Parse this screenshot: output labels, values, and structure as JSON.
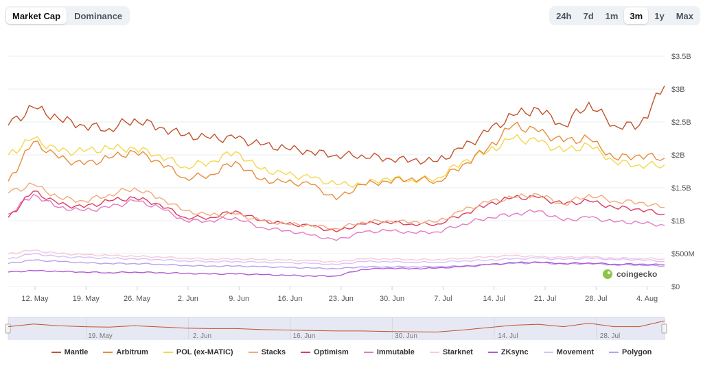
{
  "tabs": {
    "items": [
      "Market Cap",
      "Dominance"
    ],
    "active": "Market Cap"
  },
  "range": {
    "items": [
      "24h",
      "7d",
      "1m",
      "3m",
      "1y",
      "Max"
    ],
    "active": "3m"
  },
  "watermark": "coingecko",
  "chart_data": {
    "type": "line",
    "x_ticks": [
      "12. May",
      "19. May",
      "26. May",
      "2. Jun",
      "9. Jun",
      "16. Jun",
      "23. Jun",
      "30. Jun",
      "7. Jul",
      "14. Jul",
      "21. Jul",
      "28. Jul",
      "4. Aug"
    ],
    "navigator_ticks": [
      "19. May",
      "2. Jun",
      "16. Jun",
      "30. Jun",
      "14. Jul",
      "28. Jul"
    ],
    "y_ticks": [
      "$0",
      "$500M",
      "$1B",
      "$1.5B",
      "$2B",
      "$2.5B",
      "$3B",
      "$3.5B"
    ],
    "ylim": [
      0,
      3.5
    ],
    "y_unit": "$B",
    "grid": true,
    "legend_position": "bottom",
    "x": [
      "May 9",
      "May 12",
      "May 16",
      "May 19",
      "May 23",
      "May 26",
      "May 30",
      "Jun 2",
      "Jun 6",
      "Jun 9",
      "Jun 13",
      "Jun 16",
      "Jun 20",
      "Jun 23",
      "Jun 27",
      "Jun 30",
      "Jul 4",
      "Jul 7",
      "Jul 11",
      "Jul 14",
      "Jul 18",
      "Jul 21",
      "Jul 25",
      "Jul 28",
      "Aug 1",
      "Aug 4",
      "Aug 6"
    ],
    "series": [
      {
        "name": "Mantle",
        "color": "#c2522a",
        "values": [
          2.45,
          2.72,
          2.55,
          2.45,
          2.4,
          2.55,
          2.42,
          2.3,
          2.25,
          2.25,
          2.15,
          2.1,
          2.05,
          2.0,
          2.0,
          1.95,
          1.92,
          1.9,
          2.1,
          2.35,
          2.6,
          2.7,
          2.45,
          2.8,
          2.45,
          2.45,
          3.05
        ]
      },
      {
        "name": "Arbitrum",
        "color": "#e98c3a",
        "values": [
          1.6,
          2.2,
          1.95,
          1.85,
          1.95,
          2.05,
          1.9,
          1.65,
          1.7,
          1.9,
          1.62,
          1.58,
          1.55,
          1.32,
          1.55,
          1.6,
          1.65,
          1.6,
          1.85,
          2.1,
          2.45,
          2.35,
          2.2,
          2.25,
          1.95,
          2.0,
          1.95
        ]
      },
      {
        "name": "POL (ex-MATIC)",
        "color": "#f2d84b",
        "values": [
          2.0,
          2.25,
          2.05,
          2.05,
          2.1,
          2.1,
          2.0,
          1.82,
          1.9,
          2.05,
          1.78,
          1.7,
          1.65,
          1.55,
          1.55,
          1.65,
          1.62,
          1.65,
          1.9,
          2.05,
          2.25,
          2.2,
          2.05,
          2.15,
          1.9,
          1.85,
          1.85
        ]
      },
      {
        "name": "Stacks",
        "color": "#f2a97a",
        "values": [
          1.42,
          1.55,
          1.35,
          1.3,
          1.4,
          1.5,
          1.35,
          1.15,
          1.08,
          1.1,
          1.0,
          0.95,
          0.93,
          0.88,
          0.98,
          1.0,
          0.98,
          0.98,
          1.15,
          1.28,
          1.35,
          1.4,
          1.25,
          1.4,
          1.3,
          1.28,
          1.2
        ]
      },
      {
        "name": "Optimism",
        "color": "#dc3b5e",
        "values": [
          1.05,
          1.45,
          1.25,
          1.2,
          1.3,
          1.35,
          1.25,
          1.05,
          1.05,
          1.15,
          1.0,
          0.95,
          0.92,
          0.83,
          0.95,
          0.98,
          0.95,
          0.95,
          1.1,
          1.25,
          1.35,
          1.35,
          1.25,
          1.3,
          1.2,
          1.18,
          1.1
        ]
      },
      {
        "name": "Immutable",
        "color": "#e37bc3",
        "values": [
          1.1,
          1.4,
          1.2,
          1.15,
          1.2,
          1.3,
          1.2,
          1.0,
          1.0,
          1.05,
          0.9,
          0.85,
          0.78,
          0.7,
          0.82,
          0.85,
          0.82,
          0.83,
          0.95,
          1.05,
          1.1,
          1.15,
          1.0,
          1.05,
          0.98,
          0.97,
          0.93
        ]
      },
      {
        "name": "Starknet",
        "color": "#f7c9de",
        "values": [
          0.5,
          0.55,
          0.5,
          0.48,
          0.47,
          0.46,
          0.45,
          0.43,
          0.42,
          0.42,
          0.41,
          0.4,
          0.39,
          0.37,
          0.42,
          0.42,
          0.41,
          0.41,
          0.43,
          0.45,
          0.47,
          0.45,
          0.44,
          0.45,
          0.43,
          0.43,
          0.42
        ]
      },
      {
        "name": "ZKsync",
        "color": "#b05ad6",
        "values": [
          0.22,
          0.24,
          0.23,
          0.22,
          0.21,
          0.22,
          0.21,
          0.2,
          0.19,
          0.19,
          0.18,
          0.17,
          0.16,
          0.16,
          0.26,
          0.28,
          0.27,
          0.28,
          0.3,
          0.33,
          0.36,
          0.37,
          0.35,
          0.36,
          0.34,
          0.34,
          0.33
        ]
      },
      {
        "name": "Movement",
        "color": "#d6c3f2",
        "values": [
          0.42,
          0.5,
          0.45,
          0.44,
          0.43,
          0.42,
          0.41,
          0.39,
          0.38,
          0.38,
          0.37,
          0.36,
          0.35,
          0.33,
          0.38,
          0.38,
          0.37,
          0.37,
          0.39,
          0.4,
          0.42,
          0.43,
          0.41,
          0.43,
          0.41,
          0.41,
          0.38
        ]
      },
      {
        "name": "Polygon",
        "color": "#b9a0f0",
        "values": [
          0.35,
          0.4,
          0.38,
          0.36,
          0.35,
          0.35,
          0.34,
          0.32,
          0.31,
          0.31,
          0.3,
          0.29,
          0.28,
          0.27,
          0.3,
          0.3,
          0.3,
          0.3,
          0.31,
          0.33,
          0.35,
          0.36,
          0.34,
          0.35,
          0.33,
          0.33,
          0.31
        ]
      }
    ]
  }
}
